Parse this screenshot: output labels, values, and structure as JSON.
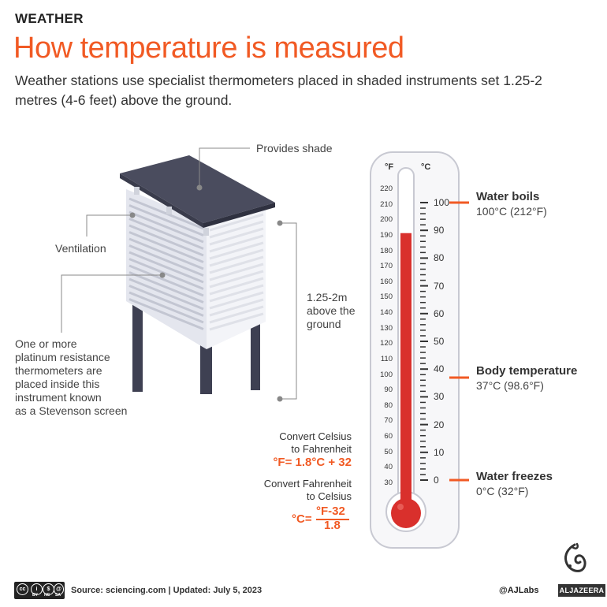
{
  "header": {
    "kicker": "WEATHER",
    "title": "How temperature is measured",
    "subtitle": "Weather stations use specialist thermometers placed in shaded instruments set 1.25-2 metres (4-6 feet) above the ground."
  },
  "screen": {
    "label_shade": "Provides shade",
    "label_ventilation": "Ventilation",
    "label_thermometer_lines": [
      "One or more",
      "platinum resistance",
      "thermometers are",
      "placed inside this",
      "instrument known",
      "as a Stevenson screen"
    ],
    "label_height_lines": [
      "1.25-2m",
      "above the",
      "ground"
    ]
  },
  "formulas": {
    "c_to_f_caption": [
      "Convert Celsius",
      "to Fahrenheit"
    ],
    "c_to_f": "°F= 1.8°C + 32",
    "f_to_c_caption": [
      "Convert Fahrenheit",
      "to Celsius"
    ],
    "f_to_c_prefix": "°C=",
    "f_to_c_numerator": "°F-32",
    "f_to_c_denominator": "1.8"
  },
  "thermometer": {
    "unit_f": "°F",
    "unit_c": "°C",
    "fahrenheit_ticks": [
      "220",
      "210",
      "200",
      "190",
      "180",
      "170",
      "160",
      "150",
      "140",
      "130",
      "120",
      "110",
      "100",
      "90",
      "80",
      "70",
      "60",
      "50",
      "40",
      "30"
    ],
    "celsius_ticks": [
      "100",
      "90",
      "80",
      "70",
      "60",
      "50",
      "40",
      "30",
      "20",
      "10",
      "0"
    ],
    "reading_celsius": 89
  },
  "annotations": [
    {
      "title": "Water boils",
      "value": "100°C (212°F)"
    },
    {
      "title": "Body temperature",
      "value": "37°C (98.6°F)"
    },
    {
      "title": "Water freezes",
      "value": "0°C (32°F)"
    }
  ],
  "footer": {
    "source": "Source: sciencing.com  |  Updated: July 5, 2023",
    "handle": "@AJLabs",
    "brand": "ALJAZEERA",
    "license_labels": [
      "BY",
      "NC",
      "SA"
    ]
  },
  "colors": {
    "accent": "#f15a24",
    "mercury": "#d9302c",
    "screen_face": "#e4e6ee",
    "roof": "#4a4c5e",
    "legs": "#3e4052"
  }
}
